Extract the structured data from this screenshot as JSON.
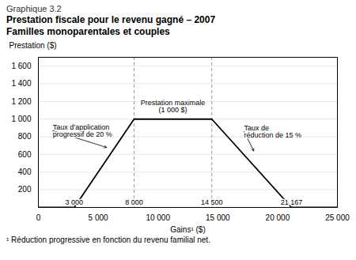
{
  "chart_data": {
    "type": "line",
    "subtitle": "Graphique 3.2",
    "title": "Prestation fiscale pour le revenu gagné – 2007\nFamilles monoparentales et couples",
    "ylabel": "Prestation ($)",
    "xlabel": "Gains¹ ($)",
    "caption": "¹ Réduction progressive en fonction du revenu familial net.",
    "x": [
      0,
      3000,
      8000,
      14500,
      21167,
      25000
    ],
    "values": [
      0,
      0,
      1000,
      1000,
      0,
      0
    ],
    "color": "#000000",
    "xlim": [
      0,
      25000
    ],
    "ylim": [
      0,
      1700
    ],
    "xticks": [
      0,
      {
        "value": 5000,
        "label": "5 000"
      },
      {
        "value": 10000,
        "label": "10 000"
      },
      {
        "value": 15000,
        "label": "15 000"
      },
      {
        "value": 20000,
        "label": "20 000"
      },
      {
        "value": 25000,
        "label": "25 000"
      }
    ],
    "yticks": [
      200,
      400,
      600,
      800,
      {
        "value": 1000,
        "label": "1 000"
      },
      {
        "value": 1200,
        "label": "1 200"
      },
      {
        "value": 1400,
        "label": "1 400"
      },
      {
        "value": 1600,
        "label": "1 600"
      }
    ],
    "grid": true,
    "reference_lines": {
      "x": [
        8000,
        14500
      ],
      "color": "#999999",
      "line_style": "dashed"
    },
    "annotations": [
      {
        "text": "3 000",
        "x": 3000,
        "y": 30
      },
      {
        "text": "8 000",
        "x": 8000,
        "y": 30
      },
      {
        "text": "14 500",
        "x": 14500,
        "y": 30
      },
      {
        "text": "21 167",
        "x": 21167,
        "y": 30
      },
      {
        "text": "Prestation maximale\n(1 000 $)",
        "x": 11250,
        "y": 1080
      },
      {
        "text": "Taux d’application\nprogressif de 20 %",
        "x": 1200,
        "y": 870,
        "arrow_x": 5700,
        "arrow_y": 680
      },
      {
        "text": "Taux de\nréduction de 15 %",
        "x": 17200,
        "y": 860,
        "arrow_x": 18000,
        "arrow_y": 640
      }
    ]
  }
}
